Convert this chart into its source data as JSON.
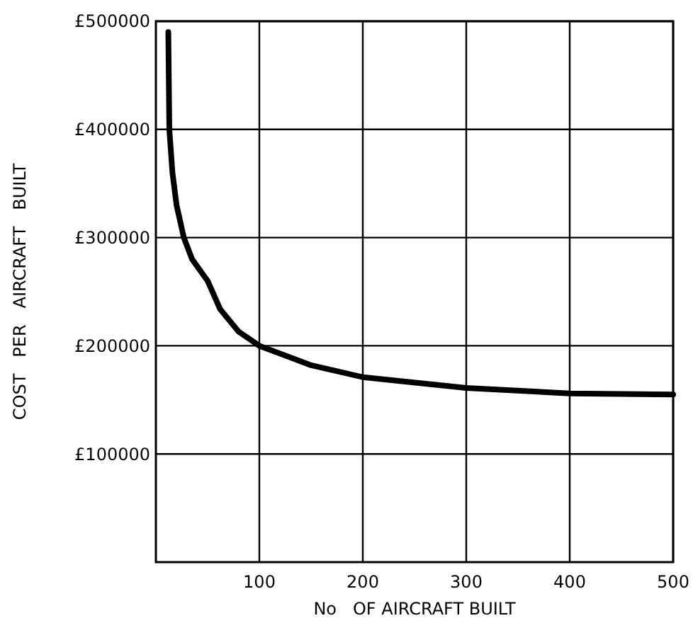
{
  "chart_data": {
    "type": "line",
    "xlabel": "No   OF AIRCRAFT BUILT",
    "ylabel": "COST   PER   AIRCRAFT   BUILT",
    "x": [
      12,
      13,
      16,
      20,
      27,
      35,
      50,
      62,
      80,
      100,
      150,
      200,
      300,
      400,
      500
    ],
    "series": [
      {
        "color": "#000000",
        "values": [
          490000,
          400000,
          360000,
          330000,
          300000,
          280000,
          260000,
          234000,
          213000,
          200000,
          182000,
          171000,
          161000,
          156000,
          155000
        ]
      }
    ],
    "xlim": [
      0,
      500
    ],
    "xticks": [
      100,
      200,
      300,
      400,
      500
    ],
    "ylim": [
      0,
      500000
    ],
    "yticks": [
      {
        "value": 100000,
        "label": "£100000"
      },
      {
        "value": 200000,
        "label": "£200000"
      },
      {
        "value": 300000,
        "label": "£300000"
      },
      {
        "value": 400000,
        "label": "£400000"
      },
      {
        "value": 500000,
        "label": "£500000"
      }
    ],
    "grid": true,
    "marker": "none",
    "line_style": "solid"
  }
}
